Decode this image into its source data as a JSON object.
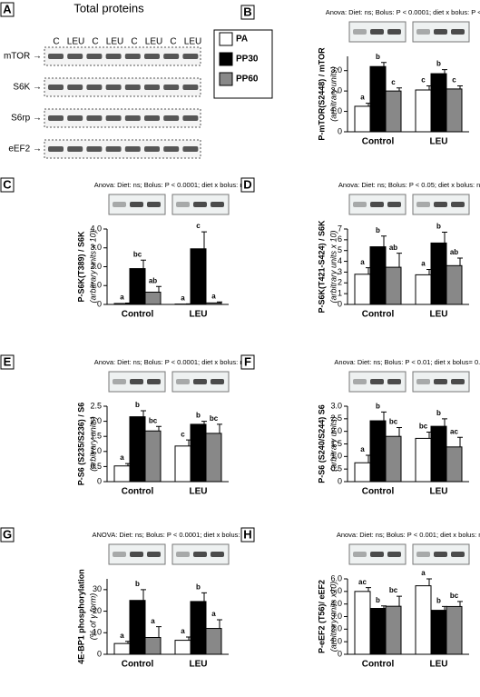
{
  "panel_a": {
    "letter": "A",
    "title": "Total proteins",
    "columns": [
      "C",
      "LEU",
      "C",
      "LEU",
      "C",
      "LEU",
      "C",
      "LEU"
    ],
    "rows": [
      "mTOR →",
      "S6K →",
      "S6rp →",
      "eEF2 →"
    ]
  },
  "chart_data": [
    {
      "type": "bar",
      "panel": "B",
      "anova": "Anova: Diet: ns; Bolus: P < 0.0001; diet x bolus: P < 0.05",
      "y_label": "P-mTOR(S2448) / mTOR",
      "y_sublabel": "(arbitrary units)",
      "categories": [
        "Control",
        "LEU"
      ],
      "ylim": [
        0,
        3.7
      ],
      "yticks": [
        0,
        {
          "value": 1,
          "label": "1.0"
        },
        {
          "value": 2,
          "label": "2.0"
        },
        {
          "value": 3,
          "label": "3.0"
        }
      ],
      "series": [
        {
          "name": "PA",
          "color": "#ffffff",
          "values": [
            1.25,
            2.05
          ],
          "errors": [
            0.15,
            0.2
          ],
          "letters": [
            "a",
            "c"
          ]
        },
        {
          "name": "PP30",
          "color": "#000000",
          "values": [
            3.2,
            2.85
          ],
          "errors": [
            0.2,
            0.2
          ],
          "letters": [
            "b",
            "b"
          ]
        },
        {
          "name": "PP60",
          "color": "#888888",
          "values": [
            2.0,
            2.1
          ],
          "errors": [
            0.15,
            0.15
          ],
          "letters": [
            "c",
            "c"
          ]
        }
      ]
    },
    {
      "type": "bar",
      "panel": "C",
      "anova": "Anova: Diet: ns; Bolus: P < 0.0001; diet x bolus: ns",
      "y_label": "P-S6K(T389) / S6K",
      "y_sublabel": "(arbitrary units x 10)",
      "categories": [
        "Control",
        "LEU"
      ],
      "ylim": [
        0,
        4
      ],
      "yticks": [
        0,
        {
          "value": 1,
          "label": "1.0"
        },
        {
          "value": 2,
          "label": "2.0"
        },
        {
          "value": 3,
          "label": "3.0"
        },
        {
          "value": 4,
          "label": "4.0"
        }
      ],
      "series": [
        {
          "name": "PA",
          "color": "#ffffff",
          "values": [
            0.05,
            0.02
          ],
          "errors": [
            0.02,
            0.01
          ],
          "letters": [
            "a",
            "a"
          ]
        },
        {
          "name": "PP30",
          "color": "#000000",
          "values": [
            1.9,
            2.95
          ],
          "errors": [
            0.45,
            0.9
          ],
          "letters": [
            "bc",
            "c"
          ]
        },
        {
          "name": "PP60",
          "color": "#888888",
          "values": [
            0.65,
            0.08
          ],
          "errors": [
            0.3,
            0.05
          ],
          "letters": [
            "ab",
            "a"
          ]
        }
      ]
    },
    {
      "type": "bar",
      "panel": "D",
      "anova": "Anova: Diet: ns; Bolus: P < 0.05; diet x bolus: ns",
      "y_label": "P-S6K(T421-S424) / S6K",
      "y_sublabel": "(arbitrary units x 10)",
      "categories": [
        "Control",
        "LEU"
      ],
      "ylim": [
        0,
        7
      ],
      "yticks": [
        0,
        1,
        2,
        3,
        4,
        5,
        6,
        7
      ],
      "series": [
        {
          "name": "PA",
          "color": "#ffffff",
          "values": [
            2.8,
            2.75
          ],
          "errors": [
            0.6,
            0.5
          ],
          "letters": [
            "a",
            "a"
          ]
        },
        {
          "name": "PP30",
          "color": "#000000",
          "values": [
            5.35,
            5.7
          ],
          "errors": [
            1.0,
            1.0
          ],
          "letters": [
            "b",
            "b"
          ]
        },
        {
          "name": "PP60",
          "color": "#888888",
          "values": [
            3.45,
            3.6
          ],
          "errors": [
            1.3,
            0.7
          ],
          "letters": [
            "ab",
            "ab"
          ]
        }
      ]
    },
    {
      "type": "bar",
      "panel": "E",
      "anova": "Anova: Diet: ns; Bolus: P < 0.0001; diet x bolus: ns",
      "y_label": "P-S6 (S235/S236) / S6",
      "y_sublabel": "(arbitrary units)",
      "categories": [
        "Control",
        "LEU"
      ],
      "ylim": [
        0,
        2.5
      ],
      "yticks": [
        0,
        0.5,
        {
          "value": 1,
          "label": "1.0"
        },
        1.5,
        {
          "value": 2,
          "label": "2.0"
        },
        2.5
      ],
      "series": [
        {
          "name": "PA",
          "color": "#ffffff",
          "values": [
            0.52,
            1.18
          ],
          "errors": [
            0.08,
            0.2
          ],
          "letters": [
            "a",
            "c"
          ]
        },
        {
          "name": "PP30",
          "color": "#000000",
          "values": [
            2.15,
            1.9
          ],
          "errors": [
            0.2,
            0.1
          ],
          "letters": [
            "b",
            "b"
          ]
        },
        {
          "name": "PP60",
          "color": "#888888",
          "values": [
            1.68,
            1.6
          ],
          "errors": [
            0.15,
            0.3
          ],
          "letters": [
            "bc",
            "bc"
          ]
        }
      ]
    },
    {
      "type": "bar",
      "panel": "F",
      "anova": "Anova: Diet: ns; Bolus: P < 0.01; diet x bolus= 0.09",
      "y_label": "P-S6 (S240/S244) S6",
      "y_sublabel": "(arbitrary units)",
      "categories": [
        "Control",
        "LEU"
      ],
      "ylim": [
        0,
        3
      ],
      "yticks": [
        0,
        0.5,
        {
          "value": 1,
          "label": "1.0"
        },
        1.5,
        {
          "value": 2,
          "label": "2.0"
        },
        2.5,
        {
          "value": 3,
          "label": "3.0"
        }
      ],
      "series": [
        {
          "name": "PA",
          "color": "#ffffff",
          "values": [
            0.75,
            1.72
          ],
          "errors": [
            0.3,
            0.25
          ],
          "letters": [
            "a",
            "bc"
          ]
        },
        {
          "name": "PP30",
          "color": "#000000",
          "values": [
            2.42,
            2.2
          ],
          "errors": [
            0.35,
            0.3
          ],
          "letters": [
            "b",
            "b"
          ]
        },
        {
          "name": "PP60",
          "color": "#888888",
          "values": [
            1.8,
            1.38
          ],
          "errors": [
            0.35,
            0.38
          ],
          "letters": [
            "bc",
            "ac"
          ]
        }
      ]
    },
    {
      "type": "bar",
      "panel": "G",
      "anova": "ANOVA: Diet: ns; Bolus: P < 0.0001; diet x bolus: ns",
      "y_label": "4E-BP1 phosphorylation",
      "y_sublabel": "(% of γ form)",
      "categories": [
        "Control",
        "LEU"
      ],
      "ylim": [
        0,
        35
      ],
      "yticks": [
        0,
        10,
        20,
        30
      ],
      "series": [
        {
          "name": "PA",
          "color": "#ffffff",
          "values": [
            5,
            6.5
          ],
          "errors": [
            1,
            1.5
          ],
          "letters": [
            "a",
            "a"
          ]
        },
        {
          "name": "PP30",
          "color": "#000000",
          "values": [
            25,
            24.5
          ],
          "errors": [
            5,
            4
          ],
          "letters": [
            "b",
            "b"
          ]
        },
        {
          "name": "PP60",
          "color": "#888888",
          "values": [
            7.8,
            12
          ],
          "errors": [
            5,
            4
          ],
          "letters": [
            "a",
            "a"
          ]
        }
      ]
    },
    {
      "type": "bar",
      "panel": "H",
      "anova": "Anova: Diet: ns; Bolus: P < 0.001; diet x bolus: ns",
      "y_label": "P-eEF2 (T56)/ eEF2",
      "y_sublabel": "(arbitrary units x10)",
      "categories": [
        "Control",
        "LEU"
      ],
      "ylim": [
        0,
        6
      ],
      "yticks": [
        0,
        {
          "value": 1,
          "label": "1.0"
        },
        {
          "value": 2,
          "label": "2.0"
        },
        {
          "value": 3,
          "label": "3.0"
        },
        {
          "value": 4,
          "label": "4.0"
        },
        {
          "value": 5,
          "label": "5.0"
        },
        {
          "value": 6,
          "label": "6.0"
        }
      ],
      "series": [
        {
          "name": "PA",
          "color": "#ffffff",
          "values": [
            5.0,
            5.45
          ],
          "errors": [
            0.3,
            0.55
          ],
          "letters": [
            "ac",
            "a"
          ]
        },
        {
          "name": "PP30",
          "color": "#000000",
          "values": [
            3.65,
            3.5
          ],
          "errors": [
            0.2,
            0.3
          ],
          "letters": [
            "b",
            "b"
          ]
        },
        {
          "name": "PP60",
          "color": "#888888",
          "values": [
            3.82,
            3.8
          ],
          "errors": [
            0.8,
            0.4
          ],
          "letters": [
            "bc",
            "bc"
          ]
        }
      ]
    }
  ]
}
